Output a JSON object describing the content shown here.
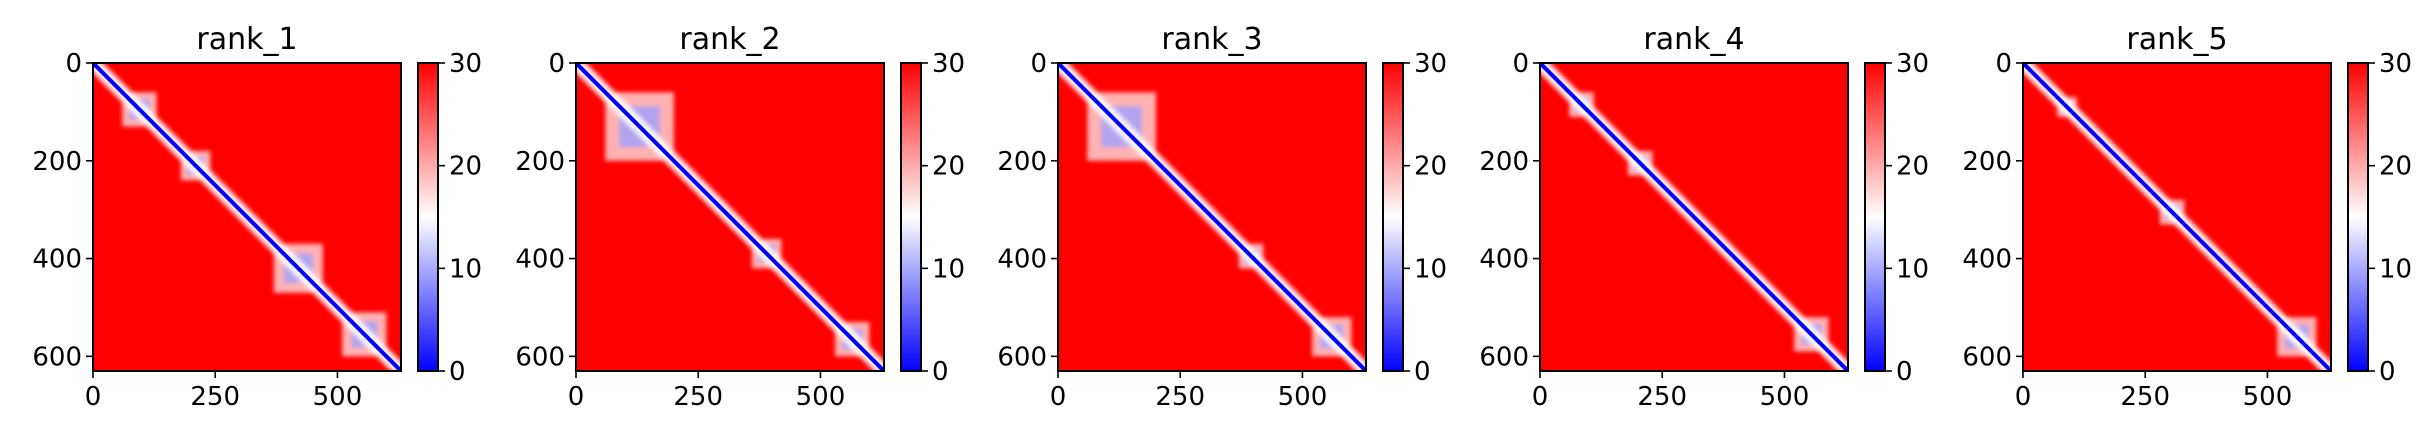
{
  "chart_data": [
    {
      "type": "heatmap",
      "title": "rank_1",
      "xticks": [
        "0",
        "250",
        "500"
      ],
      "yticks": [
        "0",
        "200",
        "400",
        "600"
      ],
      "xlim": [
        0,
        630
      ],
      "ylim": [
        630,
        0
      ],
      "colorbar": {
        "range": [
          0,
          30
        ],
        "ticks": [
          "0",
          "10",
          "20",
          "30"
        ],
        "colormap": "bwr"
      },
      "low_value_blocks": [
        [
          60,
          130
        ],
        [
          180,
          240
        ],
        [
          370,
          470
        ],
        [
          510,
          600
        ]
      ]
    },
    {
      "type": "heatmap",
      "title": "rank_2",
      "xticks": [
        "0",
        "250",
        "500"
      ],
      "yticks": [
        "0",
        "200",
        "400",
        "600"
      ],
      "xlim": [
        0,
        630
      ],
      "ylim": [
        630,
        0
      ],
      "colorbar": {
        "range": [
          0,
          30
        ],
        "ticks": [
          "0",
          "10",
          "20",
          "30"
        ],
        "colormap": "bwr"
      },
      "low_value_blocks": [
        [
          60,
          200
        ],
        [
          360,
          420
        ],
        [
          530,
          600
        ]
      ]
    },
    {
      "type": "heatmap",
      "title": "rank_3",
      "xticks": [
        "0",
        "250",
        "500"
      ],
      "yticks": [
        "0",
        "200",
        "400",
        "600"
      ],
      "xlim": [
        0,
        630
      ],
      "ylim": [
        630,
        0
      ],
      "colorbar": {
        "range": [
          0,
          30
        ],
        "ticks": [
          "0",
          "10",
          "20",
          "30"
        ],
        "colormap": "bwr"
      },
      "low_value_blocks": [
        [
          60,
          200
        ],
        [
          370,
          420
        ],
        [
          520,
          600
        ]
      ]
    },
    {
      "type": "heatmap",
      "title": "rank_4",
      "xticks": [
        "0",
        "250",
        "500"
      ],
      "yticks": [
        "0",
        "200",
        "400",
        "600"
      ],
      "xlim": [
        0,
        630
      ],
      "ylim": [
        630,
        0
      ],
      "colorbar": {
        "range": [
          0,
          30
        ],
        "ticks": [
          "0",
          "10",
          "20",
          "30"
        ],
        "colormap": "bwr"
      },
      "low_value_blocks": [
        [
          60,
          110
        ],
        [
          180,
          230
        ],
        [
          520,
          590
        ]
      ]
    },
    {
      "type": "heatmap",
      "title": "rank_5",
      "xticks": [
        "0",
        "250",
        "500"
      ],
      "yticks": [
        "0",
        "200",
        "400",
        "600"
      ],
      "xlim": [
        0,
        630
      ],
      "ylim": [
        630,
        0
      ],
      "colorbar": {
        "range": [
          0,
          30
        ],
        "ticks": [
          "0",
          "10",
          "20",
          "30"
        ],
        "colormap": "bwr"
      },
      "low_value_blocks": [
        [
          70,
          110
        ],
        [
          280,
          330
        ],
        [
          520,
          600
        ]
      ]
    }
  ]
}
